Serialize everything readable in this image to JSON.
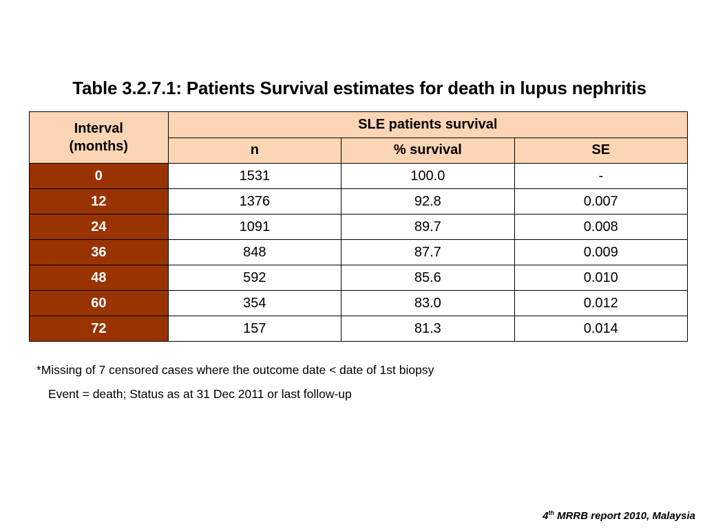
{
  "title": "Table 3.2.7.1: Patients Survival estimates for death in lupus nephritis",
  "table": {
    "interval_header_line1": "Interval",
    "interval_header_line2": "(months)",
    "group_header": "SLE patients survival",
    "col_n": "n",
    "col_survival": "% survival",
    "col_se": "SE",
    "rows": [
      {
        "interval": "0",
        "n": "1531",
        "survival": "100.0",
        "se": "-"
      },
      {
        "interval": "12",
        "n": "1376",
        "survival": "92.8",
        "se": "0.007"
      },
      {
        "interval": "24",
        "n": "1091",
        "survival": "89.7",
        "se": "0.008"
      },
      {
        "interval": "36",
        "n": "848",
        "survival": "87.7",
        "se": "0.009"
      },
      {
        "interval": "48",
        "n": "592",
        "survival": "85.6",
        "se": "0.010"
      },
      {
        "interval": "60",
        "n": "354",
        "survival": "83.0",
        "se": "0.012"
      },
      {
        "interval": "72",
        "n": "157",
        "survival": "81.3",
        "se": "0.014"
      }
    ]
  },
  "notes": {
    "missing": "*Missing of 7 censored cases where the outcome date < date of 1st biopsy",
    "event": "Event = death; Status as at 31 Dec 2011 or last follow-up"
  },
  "source": {
    "number": "4",
    "superscript": "th",
    "text": " MRRB report 2010, Malaysia"
  },
  "colors": {
    "header_fill": "#fcd5b4",
    "interval_fill": "#993300",
    "interval_text": "#ffffff"
  }
}
